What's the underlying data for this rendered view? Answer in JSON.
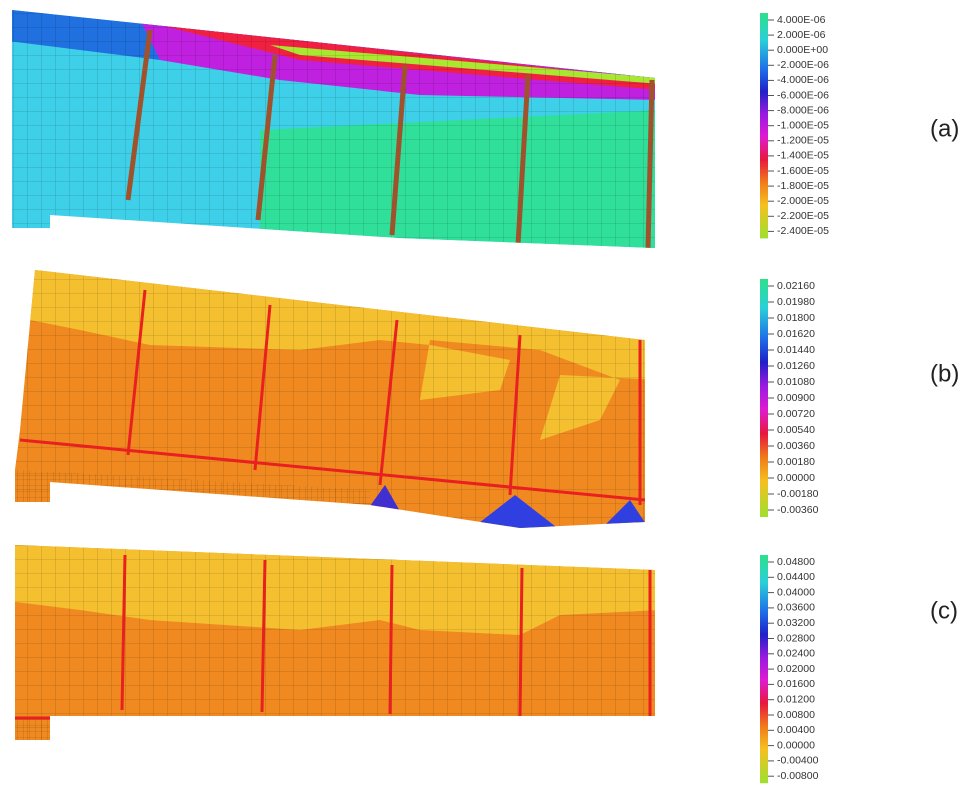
{
  "panels": [
    {
      "label": "(a)",
      "legend": [
        "4.000E-06",
        "2.000E-06",
        "0.000E+00",
        "-2.000E-06",
        "-4.000E-06",
        "-6.000E-06",
        "-8.000E-06",
        "-1.000E-05",
        "-1.200E-05",
        "-1.400E-05",
        "-1.600E-05",
        "-1.800E-05",
        "-2.000E-05",
        "-2.200E-05",
        "-2.400E-05"
      ]
    },
    {
      "label": "(b)",
      "legend": [
        "0.02160",
        "0.01980",
        "0.01800",
        "0.01620",
        "0.01440",
        "0.01260",
        "0.01080",
        "0.00900",
        "0.00720",
        "0.00540",
        "0.00360",
        "0.00180",
        "0.00000",
        "-0.00180",
        "-0.00360"
      ]
    },
    {
      "label": "(c)",
      "legend": [
        "0.04800",
        "0.04400",
        "0.04000",
        "0.03600",
        "0.03200",
        "0.02800",
        "0.02400",
        "0.02000",
        "0.01600",
        "0.01200",
        "0.00800",
        "0.00400",
        "0.00000",
        "-0.00400",
        "-0.00800"
      ]
    }
  ]
}
